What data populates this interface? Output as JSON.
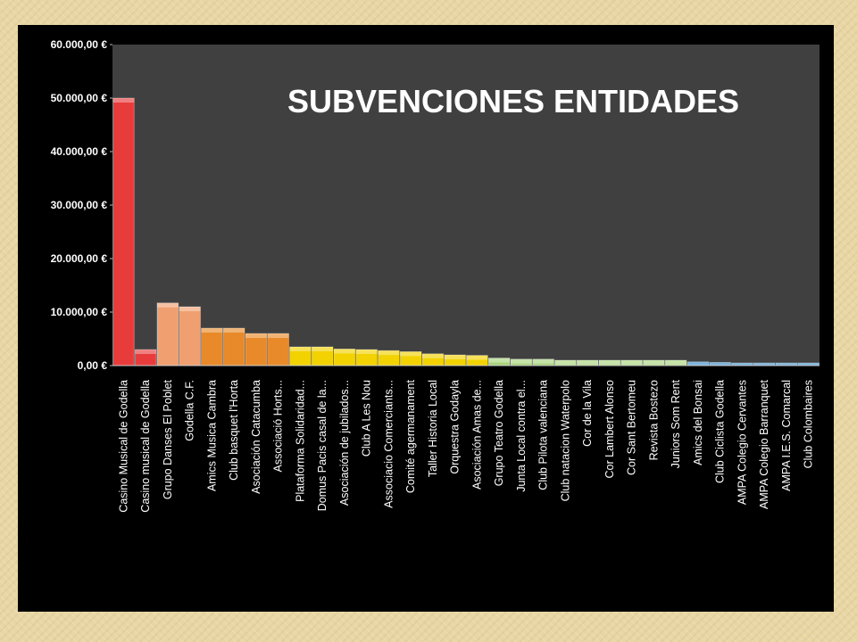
{
  "chart_data": {
    "type": "bar",
    "title": "SUBVENCIONES  ENTIDADES",
    "xlabel": "",
    "ylabel": "",
    "ylim": [
      0,
      60000
    ],
    "yticks": [
      0,
      10000,
      20000,
      30000,
      40000,
      50000,
      60000
    ],
    "ytick_labels": [
      "0,00 €",
      "10.000,00 €",
      "20.000,00 €",
      "30.000,00 €",
      "40.000,00 €",
      "50.000,00 €",
      "60.000,00 €"
    ],
    "grid": false,
    "legend": "none",
    "plot_background": "#404040",
    "categories": [
      "Casino Musical de Godella",
      "Casino musical de Godella",
      "Grupo Danses El Poblet",
      "Godella C.F.",
      "Amics Musica Cambra",
      "Club basquet l'Horta",
      "Asociación Catacumba",
      "Associació Horts...",
      "Plataforma Solidaridad...",
      "Domus Pacis casal de la...",
      "Asociación de jubilados...",
      "Club A Les Nou",
      "Associacio Comerciants...",
      "Comité agermanament",
      "Taller Historia Local",
      "Orquestra Godayla",
      "Asociación Amas de...",
      "Grupo Teatro Godella",
      "Junta Local contra el...",
      "Club Pilota valenciana",
      "Club natacion Waterpolo",
      "Cor de la Vila",
      "Cor Lambert Alonso",
      "Cor Sant Bertomeu",
      "Revista Bostezo",
      "Juniors Som Rent",
      "Amics del Bonsai",
      "Club Ciclista Godella",
      "AMPA Colegio Cervantes",
      "AMPA Colegio Barranquet",
      "AMPA I.E.S. Comarcal",
      "Club Colombaires"
    ],
    "values": [
      50000,
      3000,
      11700,
      11000,
      7000,
      7000,
      6000,
      6000,
      3500,
      3500,
      3100,
      3000,
      2800,
      2600,
      2200,
      2000,
      1900,
      1400,
      1200,
      1200,
      1000,
      1000,
      1000,
      1000,
      1000,
      1000,
      700,
      600,
      500,
      500,
      500,
      500
    ],
    "colors": [
      "#e83c3c",
      "#e83c3c",
      "#f0a070",
      "#f0a070",
      "#e88a2a",
      "#e88a2a",
      "#e88a2a",
      "#e88a2a",
      "#f2d200",
      "#f2d200",
      "#f2d200",
      "#f2d200",
      "#f2d200",
      "#f2d200",
      "#f2d200",
      "#f2d200",
      "#f2d200",
      "#a8d47a",
      "#a8d47a",
      "#a8d47a",
      "#a8d47a",
      "#a8d47a",
      "#a8d47a",
      "#a8d47a",
      "#a8d47a",
      "#a8d47a",
      "#3a8cc8",
      "#3a8cc8",
      "#3a8cc8",
      "#3a8cc8",
      "#3a8cc8",
      "#3a8cc8"
    ]
  }
}
